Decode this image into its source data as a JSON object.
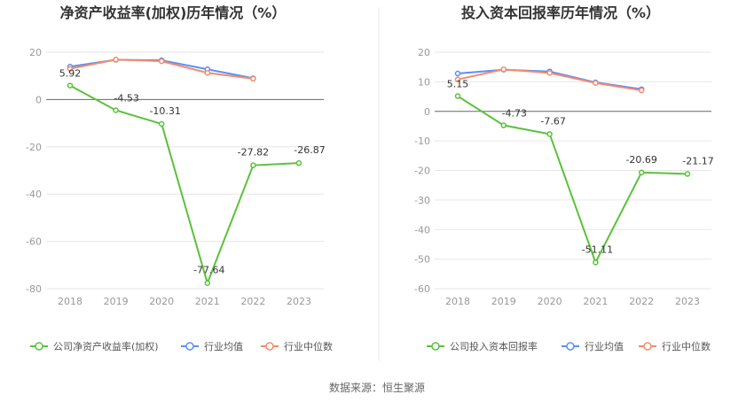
{
  "source_label": "数据来源：恒生聚源",
  "chart_data": [
    {
      "type": "line",
      "title": "净资产收益率(加权)历年情况（%）",
      "x": [
        "2018",
        "2019",
        "2020",
        "2021",
        "2022",
        "2023"
      ],
      "ylim": [
        -80,
        20
      ],
      "yticks": [
        20,
        0,
        -20,
        -40,
        -60,
        -80
      ],
      "grid": true,
      "legend_position": "bottom",
      "series": [
        {
          "name": "公司净资产收益率(加权)",
          "color": "#5ac23a",
          "values": [
            5.92,
            -4.53,
            -10.31,
            -77.64,
            -27.82,
            -26.87
          ],
          "labels": [
            "5.92",
            "-4.53",
            "-10.31",
            "-77.64",
            "-27.82",
            "-26.87"
          ]
        },
        {
          "name": "行业均值",
          "color": "#5b8ff9",
          "values": [
            13.9,
            16.8,
            16.6,
            12.8,
            9.0,
            null
          ]
        },
        {
          "name": "行业中位数",
          "color": "#f58b6b",
          "values": [
            13.0,
            16.9,
            16.2,
            11.3,
            8.8,
            null
          ]
        }
      ]
    },
    {
      "type": "line",
      "title": "投入资本回报率历年情况（%）",
      "x": [
        "2018",
        "2019",
        "2020",
        "2021",
        "2022",
        "2023"
      ],
      "ylim": [
        -60,
        20
      ],
      "yticks": [
        20,
        10,
        0,
        -10,
        -20,
        -30,
        -40,
        -50,
        -60
      ],
      "grid": true,
      "legend_position": "bottom",
      "series": [
        {
          "name": "公司投入资本回报率",
          "color": "#5ac23a",
          "values": [
            5.15,
            -4.73,
            -7.67,
            -51.11,
            -20.69,
            -21.17
          ],
          "labels": [
            "5.15",
            "-4.73",
            "-7.67",
            "-51.11",
            "-20.69",
            "-21.17"
          ]
        },
        {
          "name": "行业均值",
          "color": "#5b8ff9",
          "values": [
            12.8,
            14.1,
            13.5,
            9.8,
            7.5,
            null
          ]
        },
        {
          "name": "行业中位数",
          "color": "#f58b6b",
          "values": [
            10.8,
            14.2,
            13.0,
            9.6,
            7.1,
            null
          ]
        }
      ]
    }
  ]
}
